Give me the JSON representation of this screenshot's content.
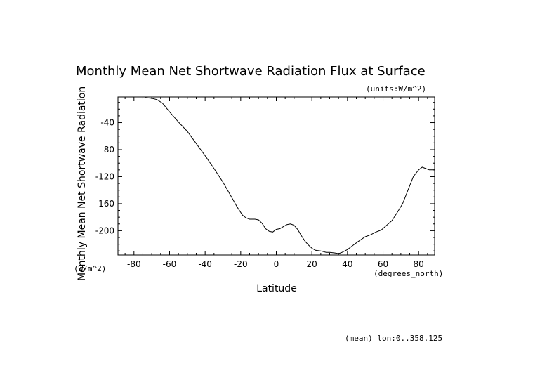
{
  "chart_data": {
    "type": "line",
    "title": "Monthly Mean Net Shortwave Radiation Flux at Surface",
    "units_note": "(units:W/m^2)",
    "xlabel": "Latitude",
    "x_units": "(degrees_north)",
    "ylabel": "Monthly Mean Net Shortwave Radiation",
    "y_units": "(W/m^2)",
    "footnote": "(mean) lon:0..358.125",
    "xlim": [
      -89,
      89
    ],
    "ylim": [
      -236,
      -2
    ],
    "x_ticks": [
      -80,
      -60,
      -40,
      -20,
      0,
      20,
      40,
      60,
      80
    ],
    "x_tick_labels": [
      "-80",
      "-60",
      "-40",
      "-20",
      "0",
      "20",
      "40",
      "60",
      "80"
    ],
    "y_ticks": [
      -40,
      -80,
      -120,
      -160,
      -200
    ],
    "y_tick_labels": [
      "-40",
      "-80",
      "-120",
      "-160",
      "-200"
    ],
    "grid": false,
    "series": [
      {
        "x": [
          -74,
          -70,
          -67,
          -64,
          -60,
          -55,
          -50,
          -45,
          -40,
          -35,
          -30,
          -25,
          -22,
          -19,
          -17,
          -15,
          -12,
          -10,
          -8,
          -6,
          -4,
          -2,
          0,
          2,
          4,
          6,
          8,
          10,
          12,
          14,
          16,
          18,
          20,
          22,
          25,
          28,
          30,
          33,
          35,
          37,
          40,
          43,
          46,
          50,
          53,
          56,
          59,
          62,
          65,
          68,
          71,
          74,
          77,
          80,
          82,
          84,
          86,
          89
        ],
        "y": [
          -3,
          -4,
          -6,
          -11,
          -24,
          -39,
          -53,
          -71,
          -89,
          -108,
          -128,
          -151,
          -165,
          -177,
          -181,
          -183,
          -183,
          -184,
          -189,
          -197,
          -201,
          -202,
          -198,
          -197,
          -194,
          -191,
          -190,
          -192,
          -198,
          -207,
          -215,
          -221,
          -226,
          -229,
          -230,
          -232,
          -232,
          -233,
          -234,
          -232,
          -228,
          -222,
          -216,
          -209,
          -206,
          -202,
          -199,
          -192,
          -185,
          -173,
          -160,
          -140,
          -120,
          -110,
          -106,
          -108,
          -110,
          -110
        ]
      }
    ]
  }
}
